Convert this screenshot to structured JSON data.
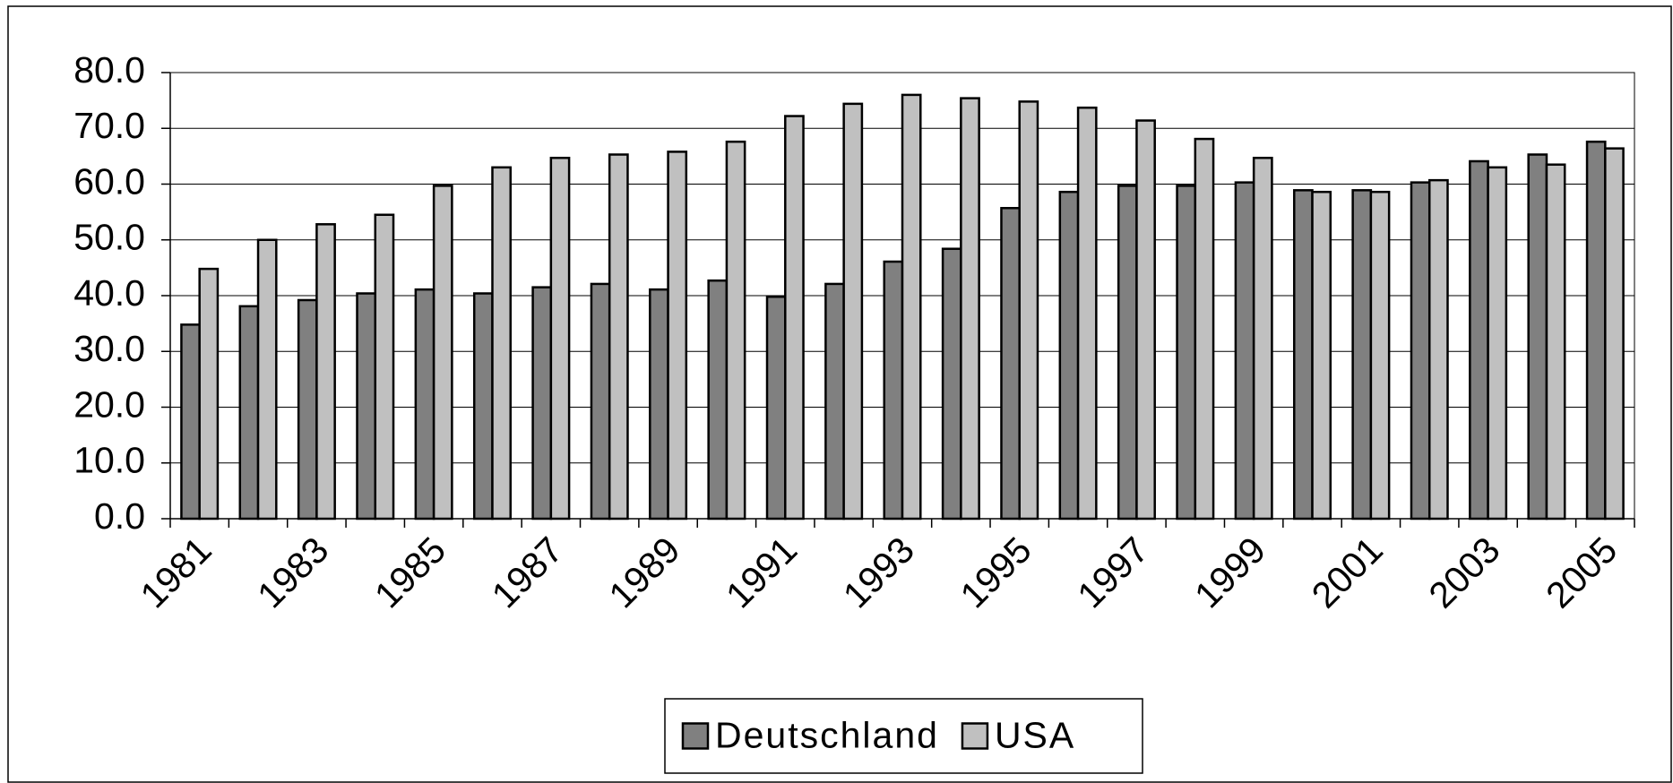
{
  "chart_data": {
    "type": "bar",
    "categories": [
      "1981",
      null,
      "1983",
      null,
      "1985",
      null,
      "1987",
      null,
      "1989",
      null,
      "1991",
      null,
      "1993",
      null,
      "1995",
      null,
      "1997",
      null,
      "1999",
      null,
      "2001",
      null,
      "2003",
      null,
      "2005"
    ],
    "series": [
      {
        "name": "Deutschland",
        "color": "#808080",
        "values": [
          34.8,
          38.1,
          39.2,
          40.4,
          41.1,
          40.4,
          41.5,
          42.1,
          41.1,
          42.7,
          39.8,
          42.1,
          46.1,
          48.4,
          55.7,
          58.6,
          59.7,
          59.7,
          60.3,
          58.9,
          58.9,
          60.3,
          64.1,
          65.3,
          67.6
        ]
      },
      {
        "name": "USA",
        "color": "#c0c0c0",
        "values": [
          44.8,
          50.0,
          52.8,
          54.5,
          59.7,
          63.0,
          64.7,
          65.3,
          65.8,
          67.6,
          72.2,
          74.4,
          76.0,
          75.4,
          74.8,
          73.7,
          71.4,
          68.1,
          64.7,
          58.6,
          58.6,
          60.7,
          63.0,
          63.5,
          66.4
        ]
      }
    ],
    "ylim": [
      0,
      80
    ],
    "yticks": [
      {
        "value": 0,
        "label": "0.0"
      },
      {
        "value": 10,
        "label": "10.0"
      },
      {
        "value": 20,
        "label": "20.0"
      },
      {
        "value": 30,
        "label": "30.0"
      },
      {
        "value": 40,
        "label": "40.0"
      },
      {
        "value": 50,
        "label": "50.0"
      },
      {
        "value": 60,
        "label": "60.0"
      },
      {
        "value": 70,
        "label": "70.0"
      },
      {
        "value": 80,
        "label": "80.0"
      }
    ],
    "grid": true,
    "legend": "bottom"
  }
}
